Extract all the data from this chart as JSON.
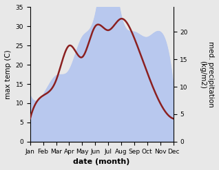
{
  "months": [
    "Jan",
    "Feb",
    "Mar",
    "Apr",
    "May",
    "Jun",
    "Jul",
    "Aug",
    "Sep",
    "Oct",
    "Nov",
    "Dec"
  ],
  "temp": [
    6,
    12,
    16,
    25,
    22,
    30,
    29,
    32,
    27,
    18,
    10,
    6
  ],
  "precip": [
    8.5,
    8.5,
    12,
    13,
    19,
    23,
    34,
    23,
    20,
    19,
    20,
    10.5
  ],
  "temp_color": "#8B2020",
  "precip_fill_color": "#b8c8ee",
  "left_ylabel": "max temp (C)",
  "right_ylabel": "med. precipitation\n(kg/m2)",
  "xlabel": "date (month)",
  "ylim_left": [
    0,
    35
  ],
  "ylim_right": [
    0,
    24.5
  ],
  "left_yticks": [
    0,
    5,
    10,
    15,
    20,
    25,
    30,
    35
  ],
  "right_yticks": [
    0,
    5,
    10,
    15,
    20
  ],
  "bg_color": "#e8e8e8",
  "label_fontsize": 7.5,
  "tick_fontsize": 6.5,
  "xlabel_fontsize": 8,
  "linewidth": 1.8
}
